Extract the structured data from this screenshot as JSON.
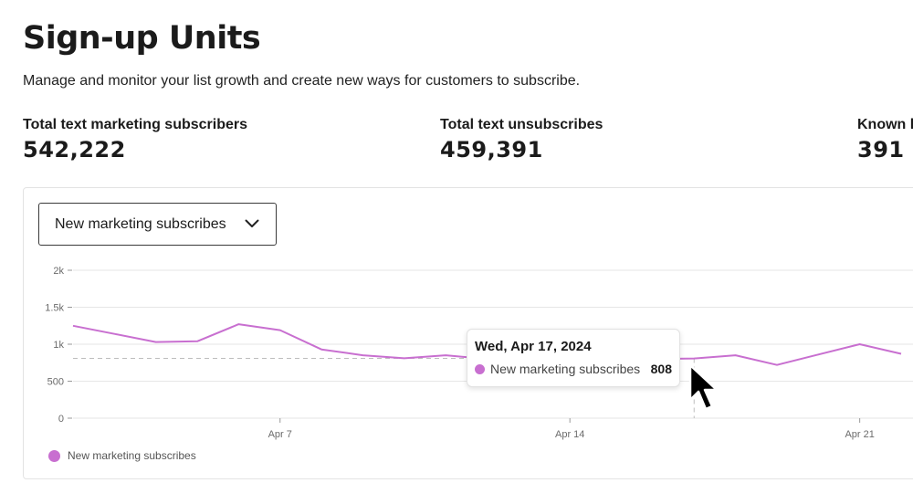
{
  "header": {
    "title": "Sign-up Units",
    "subtitle": "Manage and monitor your list growth and create new ways for customers to subscribe."
  },
  "stats": [
    {
      "label": "Total text marketing subscribers",
      "value": "542,222"
    },
    {
      "label": "Total text unsubscribes",
      "value": "459,391"
    },
    {
      "label": "Known l",
      "value": "391"
    }
  ],
  "metric_selector": {
    "selected": "New marketing subscribes",
    "icon": "chevron-down-icon"
  },
  "tooltip": {
    "date": "Wed, Apr 17, 2024",
    "series": "New marketing subscribes",
    "value": "808"
  },
  "legend": {
    "label": "New marketing subscribes"
  },
  "chart_data": {
    "type": "line",
    "y_ticks": [
      "2k",
      "1.5k",
      "1k",
      "500",
      "0"
    ],
    "x_ticks": [
      "Apr 7",
      "Apr 14",
      "Apr 21"
    ],
    "ylim": [
      0,
      2000
    ],
    "x": [
      "Apr 2",
      "Apr 3",
      "Apr 4",
      "Apr 5",
      "Apr 6",
      "Apr 7",
      "Apr 8",
      "Apr 9",
      "Apr 10",
      "Apr 11",
      "Apr 12",
      "Apr 13",
      "Apr 14",
      "Apr 15",
      "Apr 16",
      "Apr 17",
      "Apr 18",
      "Apr 19",
      "Apr 20",
      "Apr 21",
      "Apr 22"
    ],
    "series": [
      {
        "name": "New marketing subscribes",
        "values": [
          1250,
          1140,
          1030,
          1040,
          1270,
          1190,
          930,
          850,
          810,
          850,
          800,
          820,
          830,
          820,
          800,
          808,
          850,
          720,
          860,
          1000,
          870
        ]
      }
    ],
    "highlight": {
      "x": "Apr 17",
      "value": 808
    },
    "colors": {
      "line": "#c86fd0",
      "grid": "#e6e6e6",
      "reference": "#bdbdbd"
    },
    "legend_position": "bottom-left",
    "grid": true
  }
}
